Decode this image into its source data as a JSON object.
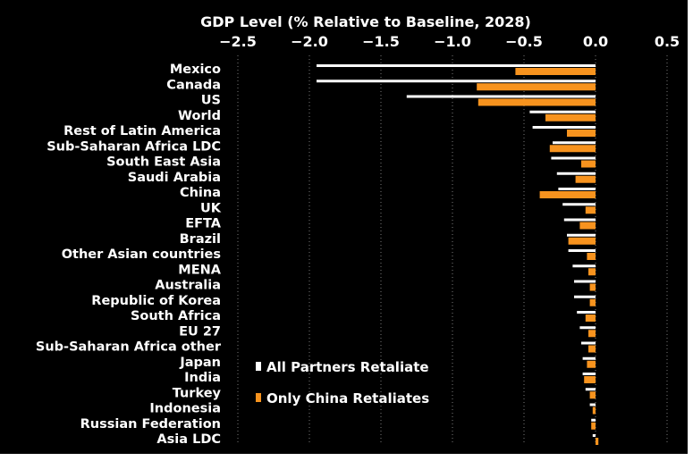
{
  "chart_data": {
    "type": "bar",
    "orientation": "horizontal",
    "title": "GDP Level (% Relative to Baseline, 2028)",
    "xlabel": "",
    "ylabel": "",
    "xlim": [
      -2.5,
      0.5
    ],
    "x_ticks": [
      -2.5,
      -2.0,
      -1.5,
      -1.0,
      -0.5,
      0.0,
      0.5
    ],
    "x_tick_labels": [
      "−2.5",
      "−2.0",
      "−1.5",
      "−1.0",
      "−0.5",
      "0.0",
      "0.5"
    ],
    "grid": "vertical dotted",
    "legend_position": "bottom-center",
    "categories": [
      "Mexico",
      "Canada",
      "US",
      "World",
      "Rest of Latin America",
      "Sub-Saharan Africa LDC",
      "South East Asia",
      "Saudi Arabia",
      "China",
      "UK",
      "EFTA",
      "Brazil",
      "Other Asian countries",
      "MENA",
      "Australia",
      "Republic of Korea",
      "South Africa",
      "EU 27",
      "Sub-Saharan Africa other",
      "Japan",
      "India",
      "Turkey",
      "Indonesia",
      "Russian Federation",
      "Asia LDC"
    ],
    "series": [
      {
        "name": "All Partners Retaliate",
        "color": "#ffffff",
        "values": [
          -1.95,
          -1.95,
          -1.32,
          -0.46,
          -0.44,
          -0.3,
          -0.31,
          -0.27,
          -0.26,
          -0.23,
          -0.22,
          -0.2,
          -0.19,
          -0.16,
          -0.15,
          -0.15,
          -0.13,
          -0.11,
          -0.1,
          -0.09,
          -0.09,
          -0.07,
          -0.04,
          -0.03,
          -0.02
        ]
      },
      {
        "name": "Only China Retaliates",
        "color": "#f7931e",
        "values": [
          -0.56,
          -0.83,
          -0.82,
          -0.35,
          -0.2,
          -0.32,
          -0.1,
          -0.14,
          -0.39,
          -0.07,
          -0.11,
          -0.19,
          -0.06,
          -0.05,
          -0.04,
          -0.04,
          -0.07,
          -0.05,
          -0.05,
          -0.06,
          -0.08,
          -0.04,
          -0.02,
          -0.03,
          0.02
        ]
      }
    ]
  }
}
